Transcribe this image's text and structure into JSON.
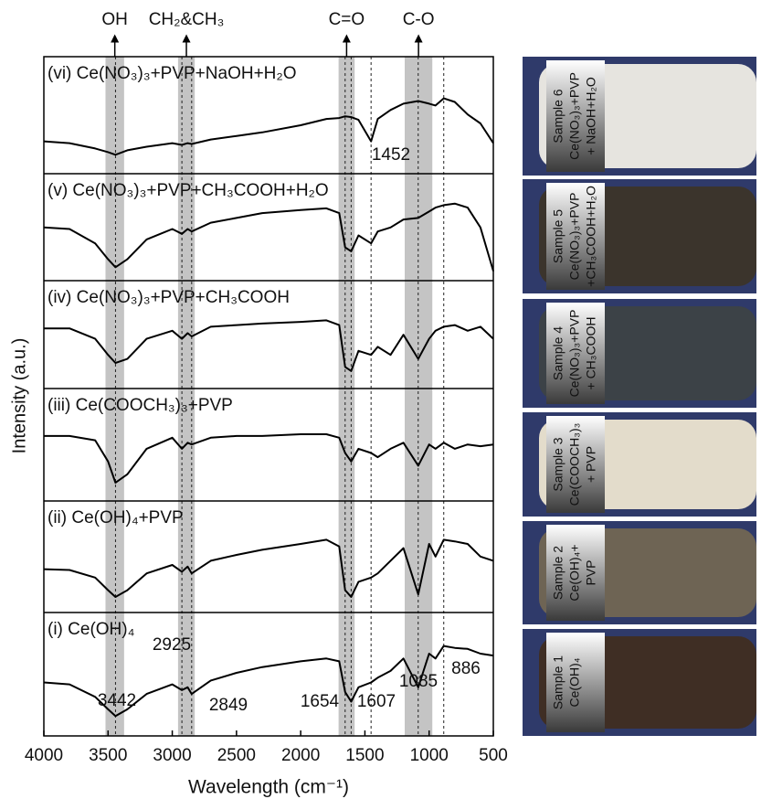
{
  "chart_data": {
    "type": "line",
    "y_label": "Intensity (a.u.)",
    "x_label": "Wavelength (cm⁻¹)",
    "xlim": [
      4000,
      500
    ],
    "xticks": [
      4000,
      3500,
      3000,
      2500,
      2000,
      1500,
      1000,
      500
    ],
    "ylim": [
      0,
      100
    ],
    "color": "#000000",
    "bands": [
      {
        "label": "OH",
        "range": [
          3520,
          3375
        ]
      },
      {
        "label": "CH₂&CH₃",
        "range": [
          2955,
          2825
        ]
      },
      {
        "label": "C=O",
        "range": [
          1705,
          1580
        ]
      },
      {
        "label": "C-O",
        "range": [
          1190,
          975
        ]
      }
    ],
    "peaks": [
      3442,
      2925,
      2849,
      1654,
      1607,
      1452,
      1085,
      886
    ],
    "x": [
      4000,
      3800,
      3600,
      3500,
      3442,
      3350,
      3200,
      3000,
      2925,
      2880,
      2849,
      2700,
      2500,
      2300,
      2000,
      1800,
      1700,
      1654,
      1607,
      1550,
      1452,
      1400,
      1300,
      1200,
      1085,
      1000,
      950,
      886,
      800,
      700,
      600,
      500
    ],
    "panels": [
      {
        "name": "(vi) Ce(NO₃)₃+PVP+NaOH+H₂O",
        "values": [
          30,
          28,
          22,
          18,
          15,
          20,
          24,
          28,
          26,
          28,
          27,
          32,
          36,
          40,
          48,
          55,
          56,
          58,
          57,
          54,
          30,
          55,
          65,
          72,
          75,
          72,
          70,
          78,
          74,
          60,
          50,
          28
        ]
      },
      {
        "name": "(v) Ce(NO₃)₃+PVP+CH₃COOH+H₂O",
        "values": [
          60,
          58,
          40,
          20,
          10,
          20,
          45,
          58,
          52,
          58,
          55,
          66,
          72,
          78,
          82,
          84,
          78,
          35,
          30,
          50,
          40,
          55,
          60,
          70,
          72,
          80,
          85,
          88,
          90,
          85,
          60,
          5
        ]
      },
      {
        "name": "(iv) Ce(NO₃)₃+PVP+CH₃COOH",
        "values": [
          68,
          68,
          55,
          35,
          25,
          30,
          55,
          65,
          55,
          62,
          58,
          70,
          72,
          74,
          76,
          78,
          72,
          20,
          15,
          40,
          35,
          45,
          35,
          60,
          30,
          55,
          65,
          70,
          72,
          65,
          70,
          55
        ]
      },
      {
        "name": "(iii) Ce(COOCH₃)₃+PVP",
        "values": [
          70,
          70,
          65,
          40,
          15,
          25,
          55,
          68,
          55,
          62,
          60,
          68,
          70,
          70,
          72,
          72,
          68,
          50,
          40,
          55,
          50,
          45,
          55,
          62,
          35,
          60,
          55,
          62,
          55,
          60,
          58,
          60
        ]
      },
      {
        "name": "(ii) Ce(OH)₄+PVP",
        "values": [
          45,
          44,
          35,
          20,
          12,
          20,
          40,
          50,
          42,
          48,
          40,
          55,
          62,
          68,
          75,
          80,
          72,
          20,
          12,
          30,
          35,
          40,
          55,
          70,
          15,
          75,
          60,
          80,
          78,
          75,
          60,
          55
        ]
      },
      {
        "name": "(i) Ce(OH)₄",
        "values": [
          50,
          48,
          35,
          22,
          15,
          22,
          38,
          48,
          42,
          45,
          38,
          52,
          60,
          66,
          72,
          75,
          72,
          40,
          30,
          45,
          50,
          55,
          62,
          75,
          45,
          80,
          75,
          88,
          86,
          85,
          80,
          78
        ]
      }
    ],
    "photos": [
      {
        "lines": [
          "Sample 6",
          "Ce(NO₃)₃+PVP",
          "+ NaOH+H₂O"
        ]
      },
      {
        "lines": [
          "Sample 5",
          "Ce(NO₃)₃+PVP",
          "+CH₃COOH+H₂O"
        ]
      },
      {
        "lines": [
          "Sample 4",
          "Ce(NO₃)₃+PVP",
          "+ CH₃COOH"
        ]
      },
      {
        "lines": [
          "Sample 3",
          "Ce(COOCH₃)₃",
          "+ PVP"
        ]
      },
      {
        "lines": [
          "Sample 2",
          "Ce(OH)₄+",
          "PVP"
        ]
      },
      {
        "lines": [
          "Sample 1",
          "Ce(OH)₄"
        ]
      }
    ]
  }
}
